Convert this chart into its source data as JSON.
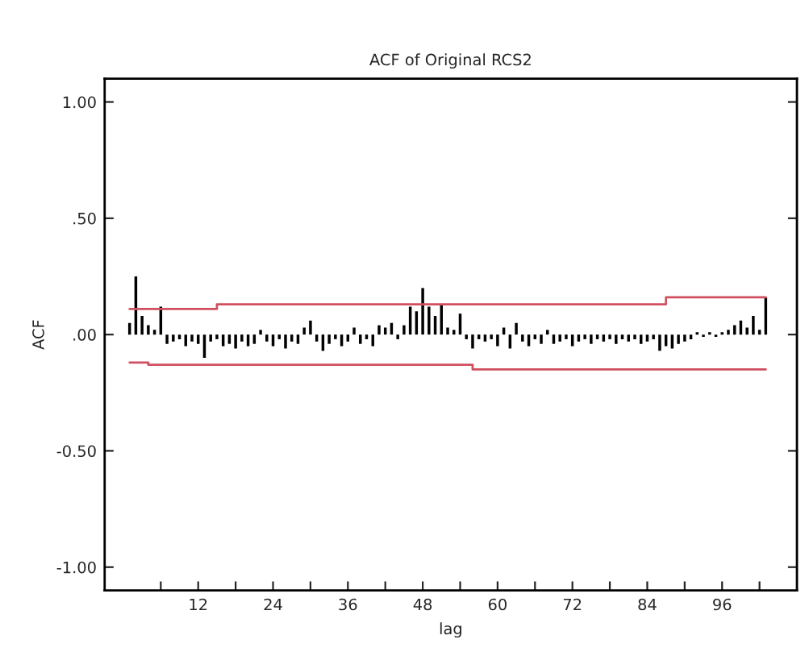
{
  "chart_data": {
    "type": "bar",
    "title": "ACF of Original RCS2",
    "xlabel": "lag",
    "ylabel": "ACF",
    "x": [
      1,
      2,
      3,
      4,
      5,
      6,
      7,
      8,
      9,
      10,
      11,
      12,
      13,
      14,
      15,
      16,
      17,
      18,
      19,
      20,
      21,
      22,
      23,
      24,
      25,
      26,
      27,
      28,
      29,
      30,
      31,
      32,
      33,
      34,
      35,
      36,
      37,
      38,
      39,
      40,
      41,
      42,
      43,
      44,
      45,
      46,
      47,
      48,
      49,
      50,
      51,
      52,
      53,
      54,
      55,
      56,
      57,
      58,
      59,
      60,
      61,
      62,
      63,
      64,
      65,
      66,
      67,
      68,
      69,
      70,
      71,
      72,
      73,
      74,
      75,
      76,
      77,
      78,
      79,
      80,
      81,
      82,
      83,
      84,
      85,
      86,
      87,
      88,
      89,
      90,
      91,
      92,
      93,
      94,
      95,
      96,
      97,
      98,
      99,
      100,
      101,
      102,
      103
    ],
    "series": [
      {
        "color": "#000000",
        "values": [
          0.05,
          0.25,
          0.08,
          0.04,
          0.02,
          0.12,
          -0.04,
          -0.03,
          -0.02,
          -0.05,
          -0.03,
          -0.04,
          -0.1,
          -0.03,
          -0.02,
          -0.05,
          -0.04,
          -0.06,
          -0.03,
          -0.05,
          -0.04,
          0.02,
          -0.03,
          -0.05,
          -0.02,
          -0.06,
          -0.03,
          -0.04,
          0.03,
          0.06,
          -0.03,
          -0.07,
          -0.04,
          -0.02,
          -0.05,
          -0.03,
          0.03,
          -0.04,
          -0.02,
          -0.05,
          0.04,
          0.03,
          0.05,
          -0.02,
          0.04,
          0.12,
          0.1,
          0.2,
          0.12,
          0.08,
          0.13,
          0.03,
          0.02,
          0.09,
          -0.02,
          -0.06,
          -0.02,
          -0.03,
          -0.02,
          -0.05,
          0.03,
          -0.06,
          0.05,
          -0.03,
          -0.05,
          -0.02,
          -0.04,
          0.02,
          -0.04,
          -0.03,
          -0.02,
          -0.05,
          -0.03,
          -0.02,
          -0.04,
          -0.02,
          -0.03,
          -0.02,
          -0.04,
          -0.02,
          -0.03,
          -0.02,
          -0.04,
          -0.03,
          -0.02,
          -0.07,
          -0.05,
          -0.06,
          -0.04,
          -0.03,
          -0.02,
          0.01,
          -0.01,
          0.01,
          -0.01,
          0.01,
          0.02,
          0.04,
          0.06,
          0.03,
          0.08,
          0.02,
          0.16
        ]
      },
      {
        "type": "step",
        "color": "#d05060",
        "x": [
          1,
          15,
          87,
          103
        ],
        "values": [
          0.11,
          0.13,
          0.16,
          0.16
        ]
      },
      {
        "type": "step",
        "color": "#d05060",
        "x": [
          1,
          4,
          56,
          103
        ],
        "values": [
          -0.12,
          -0.13,
          -0.15,
          -0.15
        ]
      }
    ],
    "xlim": [
      -3,
      108
    ],
    "xticks": [
      {
        "value": 6,
        "label": null
      },
      12,
      {
        "value": 18,
        "label": null
      },
      24,
      {
        "value": 30,
        "label": null
      },
      36,
      {
        "value": 42,
        "label": null
      },
      48,
      {
        "value": 54,
        "label": null
      },
      60,
      {
        "value": 66,
        "label": null
      },
      72,
      {
        "value": 78,
        "label": null
      },
      84,
      {
        "value": 90,
        "label": null
      },
      96,
      {
        "value": 102,
        "label": null
      }
    ],
    "ylim": [
      -1.1,
      1.1
    ],
    "yticks": [
      {
        "value": 1,
        "label": "1.00"
      },
      {
        "value": 0.5,
        "label": ".50"
      },
      {
        "value": 0,
        "label": ".00"
      },
      {
        "value": -0.5,
        "label": "-0.50"
      },
      {
        "value": -1,
        "label": "-1.00"
      }
    ],
    "grid": false,
    "legend": false
  }
}
